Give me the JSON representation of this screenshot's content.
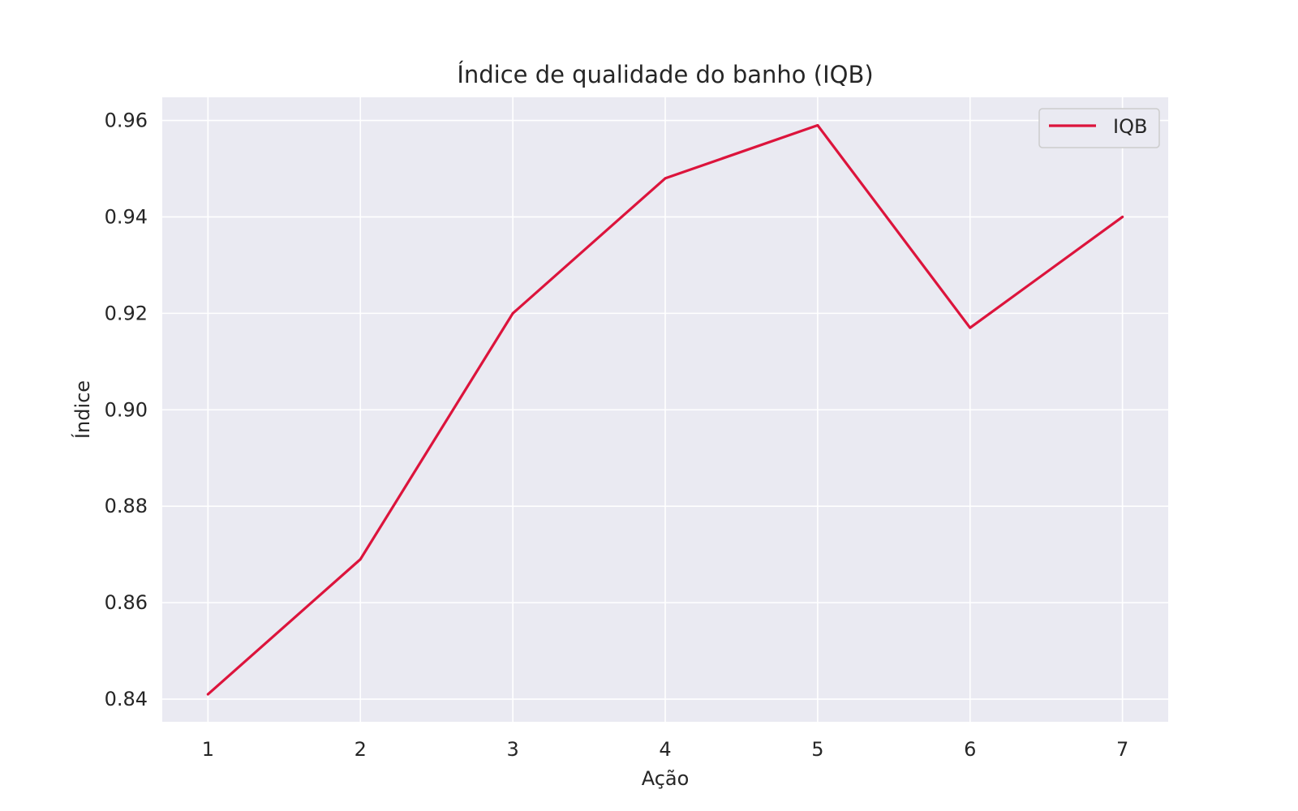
{
  "chart_data": {
    "type": "line",
    "title": "Índice de qualidade do banho (IQB)",
    "xlabel": "Ação",
    "ylabel": "Índice",
    "x": [
      1,
      2,
      3,
      4,
      5,
      6,
      7
    ],
    "xlim": [
      0.7,
      7.3
    ],
    "ylim": [
      0.8353,
      0.9648
    ],
    "xticks": [
      1,
      2,
      3,
      4,
      5,
      6,
      7
    ],
    "yticks": [
      0.84,
      0.86,
      0.88,
      0.9,
      0.92,
      0.94,
      0.96
    ],
    "ytick_labels": [
      "0.84",
      "0.86",
      "0.88",
      "0.90",
      "0.92",
      "0.94",
      "0.96"
    ],
    "grid": true,
    "legend_position": "top-right",
    "background_color": "#EAEAF2",
    "grid_color": "#FFFFFF",
    "series": [
      {
        "name": "IQB",
        "color": "#DC143C",
        "values": [
          0.841,
          0.869,
          0.92,
          0.948,
          0.959,
          0.917,
          0.94
        ]
      }
    ]
  }
}
